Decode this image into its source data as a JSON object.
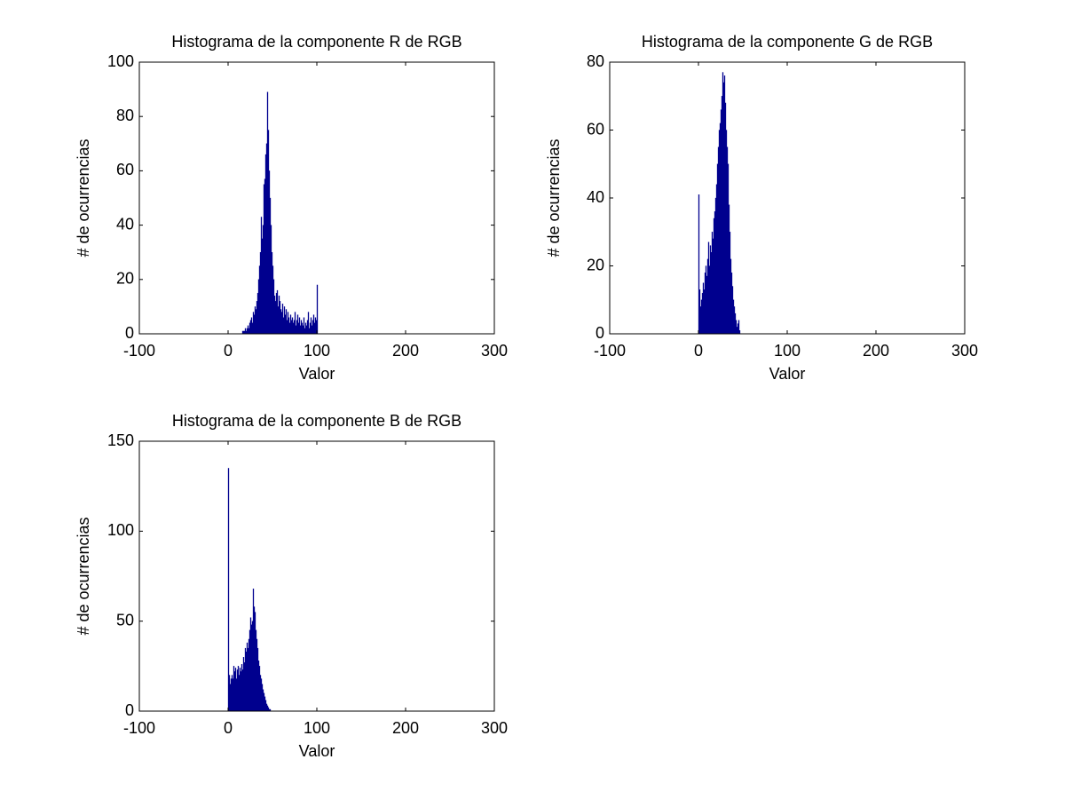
{
  "chart_data": [
    {
      "type": "histogram",
      "title": "Histograma de la componente R de RGB",
      "xlabel": "Valor",
      "ylabel": "# de ocurrencias",
      "color": "#00008f",
      "bins": [
        15,
        16,
        17,
        18,
        19,
        20,
        21,
        22,
        23,
        24,
        25,
        26,
        27,
        28,
        29,
        30,
        31,
        32,
        33,
        34,
        35,
        36,
        37,
        38,
        39,
        40,
        41,
        42,
        43,
        44,
        45,
        46,
        47,
        48,
        49,
        50,
        51,
        52,
        53,
        54,
        55,
        56,
        57,
        58,
        59,
        60,
        61,
        62,
        63,
        64,
        65,
        66,
        67,
        68,
        69,
        70,
        71,
        72,
        73,
        74,
        75,
        76,
        77,
        78,
        79,
        80,
        81,
        82,
        83,
        84,
        85,
        86,
        87,
        88,
        89,
        90,
        91,
        92,
        93,
        94,
        95,
        96,
        97,
        98,
        99,
        100,
        101
      ],
      "counts": [
        0,
        1,
        1,
        1,
        2,
        1,
        2,
        3,
        2,
        4,
        5,
        6,
        4,
        8,
        7,
        10,
        9,
        12,
        15,
        20,
        25,
        30,
        43,
        35,
        40,
        55,
        57,
        66,
        70,
        89,
        75,
        60,
        50,
        40,
        30,
        25,
        20,
        14,
        12,
        15,
        16,
        10,
        14,
        12,
        9,
        8,
        11,
        6,
        10,
        7,
        9,
        5,
        8,
        6,
        4,
        7,
        5,
        6,
        4,
        5,
        8,
        3,
        5,
        7,
        4,
        6,
        3,
        5,
        4,
        3,
        6,
        2,
        4,
        3,
        5,
        8,
        2,
        4,
        6,
        3,
        5,
        7,
        4,
        6,
        5,
        18
      ],
      "xlim": [
        -100,
        300
      ],
      "xticks": [
        -100,
        0,
        100,
        200,
        300
      ],
      "ylim": [
        0,
        100
      ],
      "yticks": [
        0,
        20,
        40,
        60,
        80,
        100
      ]
    },
    {
      "type": "histogram",
      "title": "Histograma de la componente G de RGB",
      "xlabel": "Valor",
      "ylabel": "# de ocurrencias",
      "color": "#00008f",
      "bins": [
        0,
        1,
        2,
        3,
        4,
        5,
        6,
        7,
        8,
        9,
        10,
        11,
        12,
        13,
        14,
        15,
        16,
        17,
        18,
        19,
        20,
        21,
        22,
        23,
        24,
        25,
        26,
        27,
        28,
        29,
        30,
        31,
        32,
        33,
        34,
        35,
        36,
        37,
        38,
        39,
        40,
        41,
        42,
        43,
        44,
        45,
        46,
        47
      ],
      "counts": [
        41,
        13,
        8,
        10,
        12,
        15,
        13,
        18,
        20,
        17,
        22,
        27,
        20,
        26,
        24,
        30,
        28,
        34,
        36,
        40,
        44,
        50,
        55,
        60,
        62,
        66,
        70,
        77,
        74,
        76,
        68,
        60,
        55,
        50,
        38,
        30,
        22,
        18,
        14,
        10,
        8,
        6,
        4,
        2,
        3,
        4,
        1
      ],
      "xlim": [
        -100,
        300
      ],
      "xticks": [
        -100,
        0,
        100,
        200,
        300
      ],
      "ylim": [
        0,
        80
      ],
      "yticks": [
        0,
        20,
        40,
        60,
        80
      ]
    },
    {
      "type": "histogram",
      "title": "Histograma de la componente B de RGB",
      "xlabel": "Valor",
      "ylabel": "# de ocurrencias",
      "color": "#00008f",
      "bins": [
        0,
        1,
        2,
        3,
        4,
        5,
        6,
        7,
        8,
        9,
        10,
        11,
        12,
        13,
        14,
        15,
        16,
        17,
        18,
        19,
        20,
        21,
        22,
        23,
        24,
        25,
        26,
        27,
        28,
        29,
        30,
        31,
        32,
        33,
        34,
        35,
        36,
        37,
        38,
        39,
        40,
        41,
        42,
        43,
        44,
        45,
        46,
        47,
        48
      ],
      "counts": [
        135,
        20,
        15,
        18,
        20,
        18,
        25,
        22,
        24,
        18,
        23,
        25,
        20,
        24,
        22,
        26,
        23,
        30,
        27,
        35,
        33,
        38,
        35,
        40,
        45,
        52,
        48,
        50,
        68,
        58,
        55,
        45,
        40,
        35,
        28,
        25,
        20,
        18,
        15,
        12,
        10,
        8,
        6,
        4,
        3,
        2,
        1,
        1
      ],
      "xlim": [
        -100,
        300
      ],
      "xticks": [
        -100,
        0,
        100,
        200,
        300
      ],
      "ylim": [
        0,
        150
      ],
      "yticks": [
        0,
        50,
        100,
        150
      ]
    }
  ]
}
